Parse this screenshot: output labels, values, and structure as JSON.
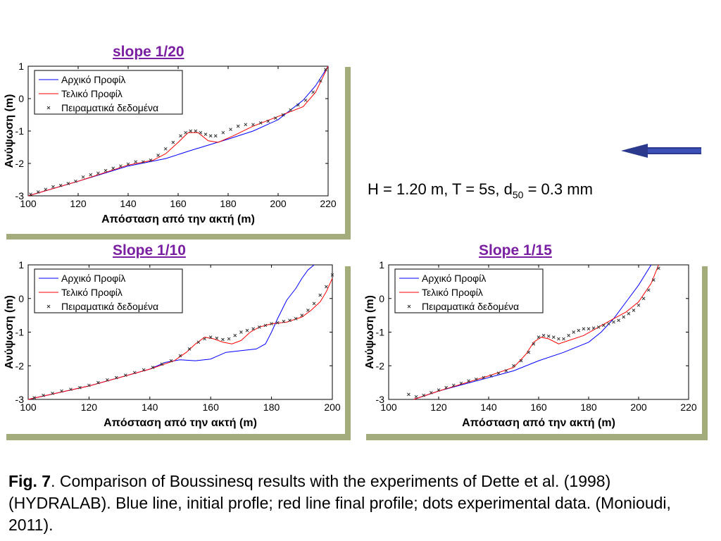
{
  "titles": {
    "p1": "slope 1/20",
    "p2": "Slope 1/10",
    "p3": "Slope 1/15"
  },
  "params": {
    "h_part": "H = 1.20 m, T = 5s,",
    "d_main": "d",
    "d_sub": "50",
    "d_val": "= 0.3 mm"
  },
  "caption": {
    "fig_label": "Fig. 7",
    "text": ". Comparison of Boussinesq results with the experiments of Dette et al. (1998) (HYDRALAB). Blue line, initial profle; red line final profile; dots experimental data. (Monioudi, 2011)."
  },
  "colors": {
    "initial": "#0000ff",
    "final": "#ff0000",
    "data": "#333333",
    "shadow": "#a3ad7c",
    "title": "#7b1fa2",
    "arrow": "#2b3a8c"
  },
  "icons": {
    "arrow": "left-arrow-icon"
  },
  "chart_data": [
    {
      "type": "line",
      "title": "slope 1/20",
      "xlabel": "Απόσταση από την ακτή (m)",
      "ylabel": "Ανύψωση (m)",
      "xlim": [
        100,
        220
      ],
      "ylim": [
        -3,
        1
      ],
      "xticks": [
        "100",
        "120",
        "140",
        "160",
        "180",
        "200",
        "220"
      ],
      "yticks": [
        "1",
        "0",
        "-1",
        "-2",
        "-3"
      ],
      "legend_position": "top-left",
      "series": [
        {
          "name": "Αρχικό Προφίλ",
          "kind": "line",
          "x": [
            100,
            120,
            140,
            155,
            165,
            180,
            190,
            200,
            210,
            215,
            220
          ],
          "y": [
            -3,
            -2.55,
            -2.08,
            -1.85,
            -1.6,
            -1.25,
            -1.0,
            -0.65,
            -0.05,
            0.4,
            1.0
          ]
        },
        {
          "name": "Τελικό Προφίλ",
          "kind": "line",
          "x": [
            100,
            120,
            140,
            150,
            155,
            160,
            164,
            168,
            172,
            176,
            182,
            190,
            200,
            210,
            215,
            220
          ],
          "y": [
            -3,
            -2.55,
            -2.05,
            -1.9,
            -1.7,
            -1.35,
            -1.05,
            -1.05,
            -1.3,
            -1.35,
            -1.15,
            -0.85,
            -0.55,
            -0.25,
            0.2,
            1.0
          ]
        },
        {
          "name": "Πειραματικά δεδομένα",
          "kind": "scatter",
          "x": [
            101,
            104,
            107,
            110,
            113,
            116,
            119,
            122,
            125,
            128,
            131,
            134,
            137,
            140,
            143,
            146,
            149,
            152,
            155,
            158,
            161,
            163,
            165,
            167,
            169,
            171,
            173,
            175,
            178,
            181,
            184,
            187,
            190,
            193,
            196,
            199,
            202,
            205,
            208,
            211,
            214,
            217,
            219
          ],
          "y": [
            -2.95,
            -2.88,
            -2.8,
            -2.72,
            -2.68,
            -2.62,
            -2.55,
            -2.42,
            -2.35,
            -2.3,
            -2.22,
            -2.15,
            -2.08,
            -2.02,
            -1.95,
            -1.95,
            -1.9,
            -1.75,
            -1.55,
            -1.35,
            -1.15,
            -1.05,
            -1.0,
            -1.0,
            -1.05,
            -1.1,
            -1.15,
            -1.15,
            -1.05,
            -0.95,
            -0.85,
            -0.8,
            -0.8,
            -0.75,
            -0.7,
            -0.6,
            -0.5,
            -0.35,
            -0.2,
            -0.05,
            0.2,
            0.55,
            0.9
          ]
        }
      ]
    },
    {
      "type": "line",
      "title": "Slope 1/10",
      "xlabel": "Απόσταση από την ακτή (m)",
      "ylabel": "Ανύψωση (m)",
      "xlim": [
        100,
        200
      ],
      "ylim": [
        -3,
        1
      ],
      "xticks": [
        "100",
        "120",
        "140",
        "160",
        "180",
        "200"
      ],
      "yticks": [
        "1",
        "0",
        "-1",
        "-2",
        "-3"
      ],
      "legend_position": "top-left",
      "series": [
        {
          "name": "Αρχικό Προφίλ",
          "kind": "line",
          "x": [
            100,
            120,
            140,
            145,
            150,
            155,
            160,
            165,
            170,
            175,
            178,
            180,
            182,
            185,
            188,
            190,
            192,
            194
          ],
          "y": [
            -3,
            -2.6,
            -2.1,
            -1.9,
            -1.82,
            -1.85,
            -1.8,
            -1.6,
            -1.55,
            -1.5,
            -1.35,
            -1.0,
            -0.6,
            -0.05,
            0.3,
            0.6,
            0.85,
            1.0
          ]
        },
        {
          "name": "Τελικό Προφίλ",
          "kind": "line",
          "x": [
            100,
            120,
            140,
            148,
            152,
            155,
            158,
            161,
            164,
            167,
            170,
            173,
            176,
            180,
            185,
            190,
            193,
            196,
            198,
            200
          ],
          "y": [
            -3,
            -2.6,
            -2.1,
            -1.85,
            -1.6,
            -1.35,
            -1.15,
            -1.2,
            -1.3,
            -1.35,
            -1.25,
            -1.0,
            -0.85,
            -0.75,
            -0.7,
            -0.55,
            -0.35,
            -0.1,
            0.2,
            0.6
          ]
        },
        {
          "name": "Πειραματικά δεδομένα",
          "kind": "scatter",
          "x": [
            102,
            105,
            108,
            111,
            114,
            117,
            120,
            123,
            126,
            129,
            132,
            135,
            138,
            141,
            144,
            147,
            150,
            153,
            156,
            158,
            160,
            162,
            164,
            166,
            168,
            170,
            172,
            174,
            176,
            178,
            180,
            182,
            184,
            186,
            188,
            190,
            192,
            194,
            196,
            198,
            200
          ],
          "y": [
            -2.95,
            -2.88,
            -2.82,
            -2.75,
            -2.7,
            -2.65,
            -2.58,
            -2.5,
            -2.42,
            -2.35,
            -2.28,
            -2.2,
            -2.12,
            -2.05,
            -1.95,
            -1.85,
            -1.7,
            -1.5,
            -1.3,
            -1.2,
            -1.15,
            -1.18,
            -1.22,
            -1.2,
            -1.1,
            -1.0,
            -0.95,
            -0.9,
            -0.85,
            -0.8,
            -0.75,
            -0.72,
            -0.68,
            -0.65,
            -0.6,
            -0.5,
            -0.35,
            -0.15,
            0.1,
            0.35,
            0.7
          ]
        }
      ]
    },
    {
      "type": "line",
      "title": "Slope 1/15",
      "xlabel": "Απόσταση από την ακτή (m)",
      "ylabel": "Ανύψωση (m)",
      "xlim": [
        100,
        220
      ],
      "ylim": [
        -3,
        1
      ],
      "xticks": [
        "100",
        "120",
        "140",
        "160",
        "180",
        "200",
        "220"
      ],
      "yticks": [
        "1",
        "0",
        "-1",
        "-2",
        "-3"
      ],
      "legend_position": "top-left",
      "series": [
        {
          "name": "Αρχικό Προφίλ",
          "kind": "line",
          "x": [
            110,
            120,
            140,
            150,
            160,
            170,
            180,
            185,
            190,
            195,
            200,
            205
          ],
          "y": [
            -3,
            -2.75,
            -2.35,
            -2.15,
            -1.85,
            -1.6,
            -1.3,
            -1.0,
            -0.6,
            -0.1,
            0.4,
            1.0
          ]
        },
        {
          "name": "Τελικό Προφίλ",
          "kind": "line",
          "x": [
            110,
            120,
            140,
            150,
            155,
            158,
            161,
            164,
            168,
            172,
            178,
            184,
            190,
            195,
            200,
            205,
            208
          ],
          "y": [
            -3,
            -2.75,
            -2.3,
            -2.05,
            -1.65,
            -1.3,
            -1.15,
            -1.2,
            -1.35,
            -1.25,
            -1.1,
            -0.85,
            -0.6,
            -0.4,
            -0.1,
            0.45,
            1.0
          ]
        },
        {
          "name": "Πειραματικά δεδομένα",
          "kind": "scatter",
          "x": [
            108,
            111,
            114,
            117,
            120,
            123,
            126,
            129,
            132,
            135,
            138,
            141,
            144,
            147,
            150,
            153,
            156,
            158,
            160,
            162,
            164,
            166,
            168,
            170,
            172,
            174,
            176,
            178,
            180,
            182,
            184,
            186,
            188,
            190,
            192,
            194,
            196,
            198,
            200,
            202,
            204,
            206,
            208
          ],
          "y": [
            -2.85,
            -2.92,
            -2.88,
            -2.8,
            -2.72,
            -2.65,
            -2.58,
            -2.52,
            -2.45,
            -2.4,
            -2.35,
            -2.3,
            -2.22,
            -2.15,
            -2.0,
            -1.85,
            -1.6,
            -1.35,
            -1.15,
            -1.1,
            -1.12,
            -1.15,
            -1.2,
            -1.2,
            -1.1,
            -1.0,
            -0.95,
            -0.9,
            -0.9,
            -0.88,
            -0.85,
            -0.8,
            -0.75,
            -0.7,
            -0.65,
            -0.55,
            -0.45,
            -0.35,
            -0.2,
            0.0,
            0.25,
            0.55,
            0.9
          ]
        }
      ]
    }
  ]
}
